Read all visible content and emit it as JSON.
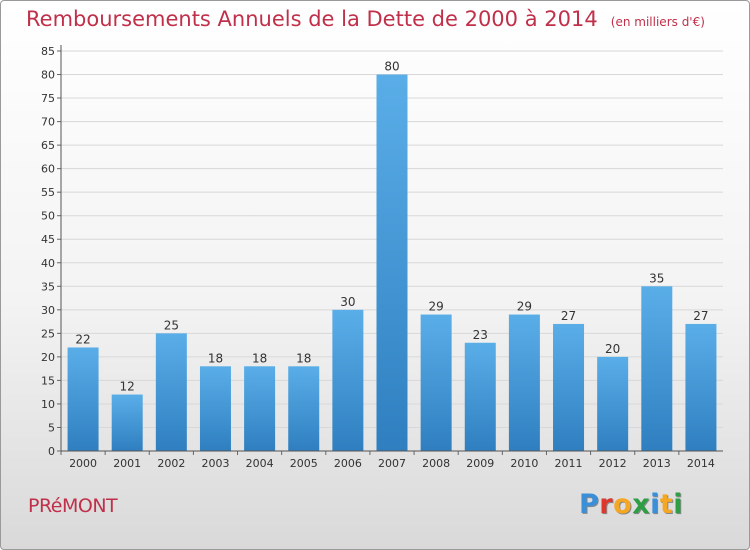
{
  "header": {
    "title": "Remboursements Annuels de la Dette de 2000 à 2014",
    "subtitle": "(en milliers d'€)"
  },
  "footer": {
    "town": "PRéMONT",
    "brand": "Proxiti",
    "brand_colors": [
      "#3a8fd8",
      "#e0372c",
      "#f5a623",
      "#2c9f45",
      "#3a8fd8",
      "#f5a623",
      "#2c9f45"
    ]
  },
  "colors": {
    "bar_light": "#5aaee8",
    "bar_dark": "#2f7fc0",
    "title": "#c0304a",
    "text": "#333333"
  },
  "chart_data": {
    "type": "bar",
    "title": "Remboursements Annuels de la Dette de 2000 à 2014",
    "categories": [
      "2000",
      "2001",
      "2002",
      "2003",
      "2004",
      "2005",
      "2006",
      "2007",
      "2008",
      "2009",
      "2010",
      "2011",
      "2012",
      "2013",
      "2014"
    ],
    "values": [
      22,
      12,
      25,
      18,
      18,
      18,
      30,
      80,
      29,
      23,
      29,
      27,
      20,
      35,
      27
    ],
    "ylim": [
      0,
      85
    ],
    "yticks": [
      0,
      5,
      10,
      15,
      20,
      25,
      30,
      35,
      40,
      45,
      50,
      55,
      60,
      65,
      70,
      75,
      80,
      85
    ],
    "grid": true,
    "legend": "none"
  }
}
